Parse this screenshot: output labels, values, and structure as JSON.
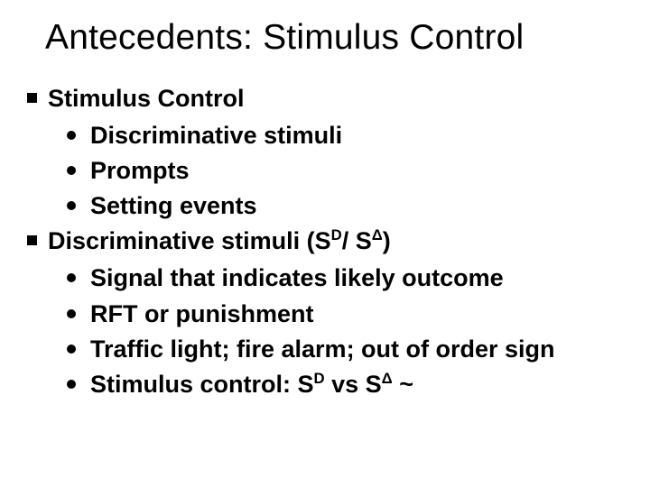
{
  "title": "Antecedents: Stimulus Control",
  "items": [
    {
      "text": "Stimulus Control",
      "sub": [
        "Discriminative stimuli",
        "Prompts",
        "Setting events"
      ]
    },
    {
      "text_html": "Discriminative stimuli (S<sup>D</sup>/ S<sup>Δ</sup>)",
      "sub_html": [
        "Signal that indicates likely outcome",
        "RFT or punishment",
        "Traffic light; fire alarm; out of order sign",
        "Stimulus control: S<sup>D</sup> vs S<sup>Δ</sup> ~"
      ]
    }
  ]
}
